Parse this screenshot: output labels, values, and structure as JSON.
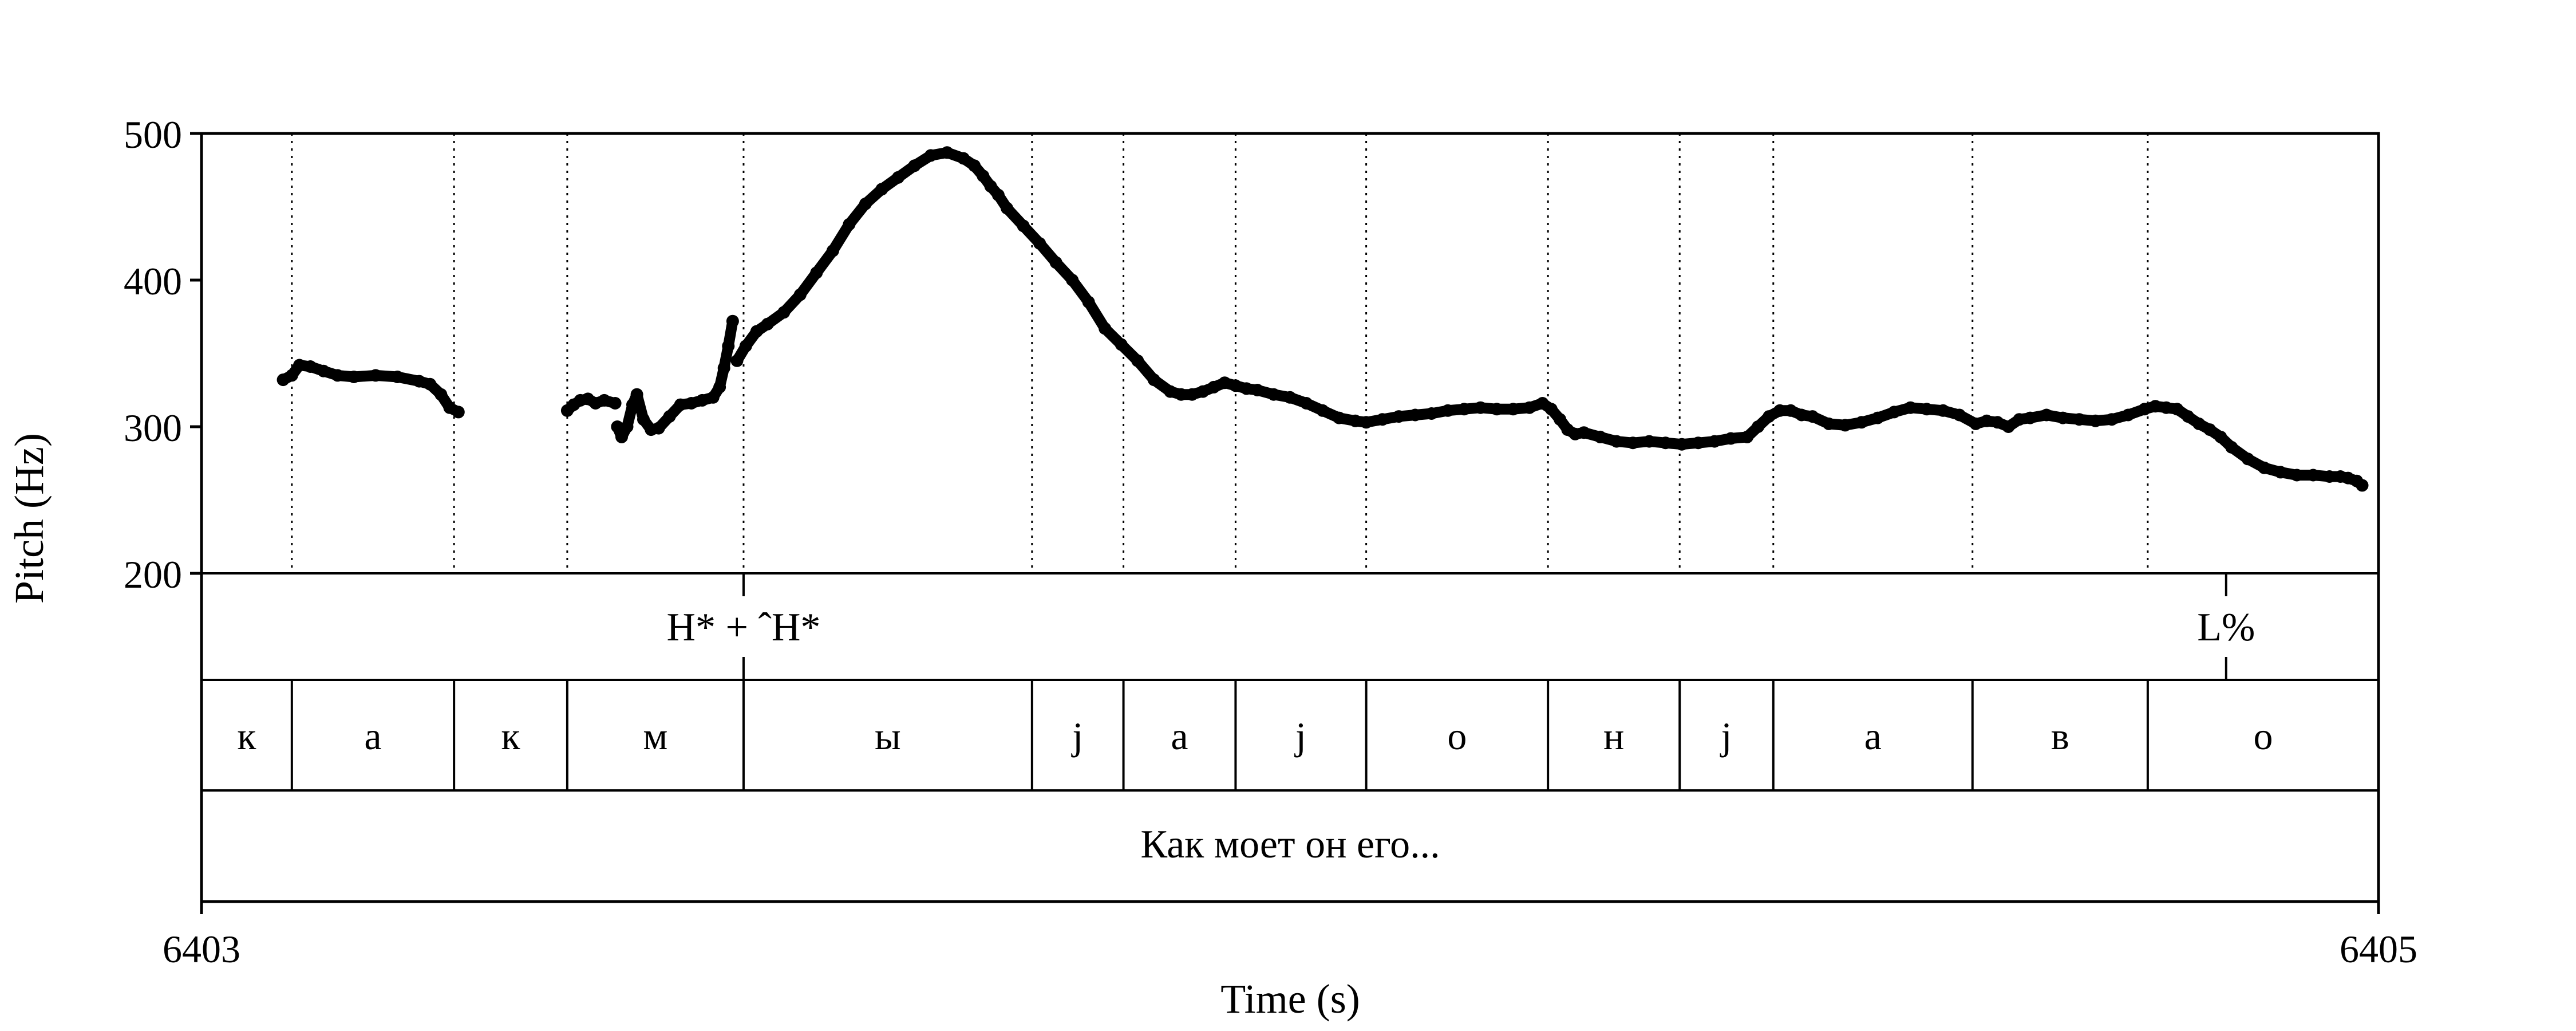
{
  "chart_data": {
    "type": "scatter",
    "xlabel": "Time (s)",
    "ylabel": "Pitch (Hz)",
    "xlim": [
      6403,
      6405
    ],
    "ylim": [
      200,
      500
    ],
    "x_tick_labels": [
      "6403",
      "6405"
    ],
    "y_tick_labels": [
      "200",
      "300",
      "400",
      "500"
    ],
    "grid": false,
    "tones": [
      {
        "label": "H* + ˆH*",
        "t": 6403.498
      },
      {
        "label": "L%",
        "t": 6404.86
      }
    ],
    "segments": [
      {
        "label": "к",
        "start": 6403.0,
        "end": 6403.083
      },
      {
        "label": "а",
        "start": 6403.083,
        "end": 6403.232
      },
      {
        "label": "к",
        "start": 6403.232,
        "end": 6403.336
      },
      {
        "label": "м",
        "start": 6403.336,
        "end": 6403.498
      },
      {
        "label": "ы",
        "start": 6403.498,
        "end": 6403.763
      },
      {
        "label": "j",
        "start": 6403.763,
        "end": 6403.847
      },
      {
        "label": "а",
        "start": 6403.847,
        "end": 6403.95
      },
      {
        "label": "j",
        "start": 6403.95,
        "end": 6404.07
      },
      {
        "label": "о",
        "start": 6404.07,
        "end": 6404.237
      },
      {
        "label": "н",
        "start": 6404.237,
        "end": 6404.358
      },
      {
        "label": "j",
        "start": 6404.358,
        "end": 6404.444
      },
      {
        "label": "а",
        "start": 6404.444,
        "end": 6404.627
      },
      {
        "label": "в",
        "start": 6404.627,
        "end": 6404.788
      },
      {
        "label": "о",
        "start": 6404.788,
        "end": 6405.0
      }
    ],
    "sentence": "Как моет он его...",
    "pitch_contours": [
      {
        "t": [
          6403.075,
          6403.083,
          6403.09,
          6403.1,
          6403.112,
          6403.125,
          6403.14,
          6403.16,
          6403.18,
          6403.2,
          6403.21,
          6403.22,
          6403.228,
          6403.236
        ],
        "f0": [
          332,
          335,
          342,
          341,
          338,
          335,
          334,
          335,
          334,
          331,
          329,
          322,
          313,
          310
        ]
      },
      {
        "t": [
          6403.336,
          6403.342,
          6403.348,
          6403.355,
          6403.362,
          6403.37,
          6403.38
        ],
        "f0": [
          311,
          315,
          318,
          319,
          316,
          318,
          316
        ]
      },
      {
        "t": [
          6403.382,
          6403.386,
          6403.391,
          6403.396,
          6403.4,
          6403.406,
          6403.413,
          6403.42,
          6403.43,
          6403.44,
          6403.45,
          6403.46,
          6403.47,
          6403.476,
          6403.48,
          6403.484,
          6403.488
        ],
        "f0": [
          300,
          293,
          300,
          315,
          322,
          305,
          298,
          299,
          307,
          315,
          316,
          318,
          320,
          327,
          340,
          355,
          372
        ]
      },
      {
        "t": [
          6403.492,
          6403.5,
          6403.51,
          6403.52,
          6403.535,
          6403.55,
          6403.565,
          6403.58,
          6403.595,
          6403.61,
          6403.625,
          6403.64,
          6403.655,
          6403.67,
          6403.685,
          6403.7,
          6403.71,
          6403.718,
          6403.725,
          6403.732,
          6403.74,
          6403.755,
          6403.77,
          6403.785,
          6403.8,
          6403.815,
          6403.83,
          6403.845,
          6403.86,
          6403.875,
          6403.89,
          6403.9,
          6403.91,
          6403.92,
          6403.93,
          6403.94,
          6403.95,
          6403.96,
          6403.97,
          6403.985,
          6404.0,
          6404.015,
          6404.03,
          6404.045,
          6404.06,
          6404.07,
          6404.085,
          6404.1,
          6404.115,
          6404.13,
          6404.145,
          6404.16,
          6404.175,
          6404.19,
          6404.205,
          6404.22,
          6404.232,
          6404.24,
          6404.248,
          6404.255,
          6404.262,
          6404.27,
          6404.285,
          6404.3,
          6404.315,
          6404.33,
          6404.345,
          6404.36,
          6404.375,
          6404.39,
          6404.405,
          6404.42,
          6404.43,
          6404.44,
          6404.45,
          6404.46,
          6404.47,
          6404.48,
          6404.495,
          6404.51,
          6404.525,
          6404.54,
          6404.555,
          6404.57,
          6404.585,
          6404.6,
          6404.615,
          6404.63,
          6404.64,
          6404.65,
          6404.66,
          6404.67,
          6404.68,
          6404.695,
          6404.71,
          6404.725,
          6404.74,
          6404.755,
          6404.77,
          6404.785,
          6404.795,
          6404.805,
          6404.815,
          6404.825,
          6404.835,
          6404.845,
          6404.855,
          6404.865,
          6404.88,
          6404.895,
          6404.91,
          6404.925,
          6404.94,
          6404.955,
          6404.965,
          6404.972,
          6404.98,
          6404.985
        ],
        "f0": [
          345,
          355,
          365,
          370,
          378,
          390,
          405,
          420,
          438,
          452,
          462,
          470,
          478,
          485,
          487,
          483,
          478,
          471,
          464,
          458,
          449,
          437,
          425,
          412,
          400,
          385,
          367,
          356,
          345,
          332,
          324,
          322,
          322,
          324,
          327,
          330,
          328,
          326,
          325,
          322,
          320,
          316,
          311,
          306,
          304,
          303,
          305,
          307,
          308,
          309,
          311,
          312,
          313,
          312,
          312,
          313,
          316,
          312,
          305,
          298,
          295,
          296,
          293,
          290,
          289,
          290,
          289,
          288,
          289,
          290,
          292,
          293,
          300,
          307,
          311,
          311,
          308,
          307,
          302,
          301,
          303,
          306,
          310,
          313,
          312,
          311,
          308,
          302,
          304,
          303,
          300,
          305,
          306,
          308,
          306,
          305,
          304,
          305,
          308,
          312,
          314,
          313,
          312,
          307,
          302,
          298,
          293,
          286,
          278,
          272,
          269,
          267,
          267,
          266,
          266,
          265,
          263,
          260,
          256,
          252
        ]
      }
    ]
  }
}
